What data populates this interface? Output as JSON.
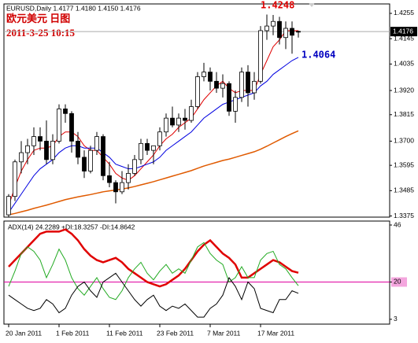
{
  "chart_data": [
    {
      "type": "candlestick",
      "title": "EURUSD,Daily 1.4177 1.4180 1.4150 1.4176",
      "subtitle": "欧元美元 日图",
      "timestamp": "2011-3-25 10:15",
      "categories": [
        "20 Jan 2011",
        null,
        null,
        null,
        null,
        null,
        null,
        null,
        "1 Feb 2011",
        null,
        null,
        null,
        null,
        null,
        null,
        null,
        "11 Feb 2011",
        null,
        null,
        null,
        null,
        null,
        null,
        null,
        "23 Feb 2011",
        null,
        null,
        null,
        null,
        null,
        null,
        null,
        "7 Mar 2011",
        null,
        null,
        null,
        null,
        null,
        null,
        null,
        "17 Mar 2011",
        null,
        null,
        null,
        null,
        null,
        null
      ],
      "open": [
        1.338,
        1.346,
        1.361,
        1.365,
        1.368,
        1.372,
        1.37,
        1.362,
        1.37,
        1.384,
        1.382,
        1.37,
        1.363,
        1.357,
        1.366,
        1.372,
        1.355,
        1.352,
        1.348,
        1.352,
        1.356,
        1.362,
        1.369,
        1.366,
        1.368,
        1.374,
        1.38,
        1.377,
        1.38,
        1.379,
        1.385,
        1.398,
        1.4,
        1.396,
        1.393,
        1.395,
        1.383,
        1.389,
        1.4,
        1.391,
        1.396,
        1.418,
        1.42,
        1.422,
        1.415,
        1.419,
        1.4177
      ],
      "high": [
        1.347,
        1.362,
        1.37,
        1.371,
        1.376,
        1.376,
        1.379,
        1.373,
        1.386,
        1.386,
        1.383,
        1.374,
        1.366,
        1.368,
        1.374,
        1.373,
        1.361,
        1.353,
        1.357,
        1.36,
        1.364,
        1.371,
        1.371,
        1.368,
        1.376,
        1.382,
        1.385,
        1.382,
        1.384,
        1.388,
        1.4,
        1.404,
        1.402,
        1.4,
        1.399,
        1.396,
        1.392,
        1.402,
        1.403,
        1.4,
        1.42,
        1.425,
        1.4248,
        1.424,
        1.422,
        1.422,
        1.418
      ],
      "low": [
        1.337,
        1.344,
        1.356,
        1.36,
        1.364,
        1.366,
        1.36,
        1.36,
        1.369,
        1.378,
        1.365,
        1.36,
        1.354,
        1.356,
        1.364,
        1.353,
        1.35,
        1.343,
        1.347,
        1.349,
        1.355,
        1.36,
        1.364,
        1.36,
        1.366,
        1.372,
        1.376,
        1.374,
        1.375,
        1.378,
        1.384,
        1.396,
        1.392,
        1.391,
        1.389,
        1.381,
        1.378,
        1.387,
        1.385,
        1.388,
        1.395,
        1.414,
        1.416,
        1.412,
        1.41,
        1.408,
        1.415
      ],
      "close": [
        1.346,
        1.361,
        1.365,
        1.368,
        1.372,
        1.37,
        1.362,
        1.37,
        1.384,
        1.382,
        1.37,
        1.363,
        1.357,
        1.366,
        1.372,
        1.355,
        1.352,
        1.348,
        1.352,
        1.356,
        1.362,
        1.369,
        1.366,
        1.368,
        1.374,
        1.38,
        1.377,
        1.38,
        1.379,
        1.385,
        1.398,
        1.4,
        1.396,
        1.393,
        1.395,
        1.383,
        1.389,
        1.4,
        1.391,
        1.396,
        1.418,
        1.42,
        1.422,
        1.415,
        1.419,
        1.416,
        1.4176
      ],
      "up_color": "#ffffff",
      "down_color": "#000000",
      "series": [
        {
          "color": "#e00000",
          "values": [
            1.342,
            1.35,
            1.357,
            1.362,
            1.366,
            1.367,
            1.367,
            1.368,
            1.372,
            1.374,
            1.374,
            1.372,
            1.368,
            1.366,
            1.366,
            1.363,
            1.36,
            1.356,
            1.354,
            1.353,
            1.355,
            1.358,
            1.361,
            1.364,
            1.368,
            1.371,
            1.373,
            1.376,
            1.378,
            1.38,
            1.384,
            1.388,
            1.391,
            1.394,
            1.396,
            1.393,
            1.391,
            1.392,
            1.392,
            1.392,
            1.399,
            1.405,
            1.411,
            1.414,
            1.418,
            1.418,
            1.418
          ]
        },
        {
          "color": "#0000e0",
          "values": [
            1.339,
            1.343,
            1.347,
            1.351,
            1.355,
            1.358,
            1.36,
            1.362,
            1.365,
            1.367,
            1.368,
            1.368,
            1.367,
            1.367,
            1.367,
            1.365,
            1.363,
            1.36,
            1.359,
            1.358,
            1.358,
            1.359,
            1.36,
            1.361,
            1.363,
            1.366,
            1.368,
            1.37,
            1.372,
            1.374,
            1.377,
            1.38,
            1.382,
            1.384,
            1.386,
            1.387,
            1.388,
            1.389,
            1.39,
            1.391,
            1.394,
            1.396,
            1.399,
            1.401,
            1.403,
            1.405,
            1.4064
          ]
        },
        {
          "color": "#e05a00",
          "values": [
            1.338,
            1.3386,
            1.3393,
            1.34,
            1.3408,
            1.3415,
            1.3422,
            1.343,
            1.3438,
            1.3446,
            1.3452,
            1.3458,
            1.3463,
            1.3468,
            1.3474,
            1.348,
            1.3484,
            1.3488,
            1.3492,
            1.3497,
            1.3503,
            1.351,
            1.3517,
            1.3524,
            1.3532,
            1.354,
            1.3548,
            1.3556,
            1.3564,
            1.3572,
            1.3582,
            1.3592,
            1.36,
            1.3608,
            1.3616,
            1.3622,
            1.363,
            1.3638,
            1.3646,
            1.3654,
            1.3665,
            1.3678,
            1.3692,
            1.3706,
            1.372,
            1.3733,
            1.3745
          ]
        }
      ],
      "ylim": [
        1.337,
        1.4296
      ],
      "yticks": [
        1.4255,
        1.4145,
        1.4035,
        {
          "value": 1.392,
          "label": "1.3920"
        },
        1.3815,
        {
          "value": 1.37,
          "label": "1.3700"
        },
        1.3595,
        1.3485,
        1.3375
      ],
      "current_price": 1.4176,
      "annotations": [
        {
          "value": 1.4248,
          "color": "#e00000"
        },
        {
          "value": 1.4064,
          "color": "#0000c0"
        }
      ]
    },
    {
      "type": "line",
      "title": "ADX(14) 24.2289 +DI:18.3257 -DI:14.8642",
      "series": [
        {
          "color": "#e00000",
          "width": 2.5,
          "values": [
            27,
            30,
            33,
            36,
            39,
            42,
            43,
            43,
            43,
            44,
            42,
            39,
            35,
            32,
            30,
            29,
            30,
            31,
            29,
            26,
            24,
            22,
            20,
            19,
            18,
            19,
            21,
            23,
            26,
            30,
            34,
            37,
            39,
            36,
            33,
            31,
            28,
            22,
            22,
            24,
            26,
            28,
            30,
            29,
            27,
            25,
            24.2289
          ]
        },
        {
          "color": "#22aa22",
          "width": 1,
          "values": [
            18,
            25,
            33,
            36,
            34,
            30,
            22,
            28,
            35,
            30,
            22,
            17,
            14,
            18,
            22,
            17,
            13,
            12,
            16,
            22,
            26,
            29,
            24,
            21,
            25,
            28,
            24,
            26,
            24,
            30,
            36,
            38,
            33,
            30,
            28,
            20,
            22,
            27,
            22,
            22,
            30,
            33,
            34,
            28,
            26,
            22,
            18.3257
          ]
        },
        {
          "color": "#000000",
          "width": 1,
          "values": [
            14,
            12,
            10,
            8,
            7,
            8,
            12,
            10,
            6,
            8,
            14,
            18,
            20,
            16,
            13,
            20,
            22,
            24,
            20,
            16,
            12,
            9,
            12,
            14,
            9,
            7,
            9,
            8,
            10,
            7,
            4,
            4,
            8,
            10,
            14,
            22,
            18,
            12,
            20,
            17,
            8,
            7,
            6,
            12,
            12,
            16,
            14.8642
          ]
        }
      ],
      "ylim": [
        0.8,
        47.8
      ],
      "yticks": [
        46,
        20,
        3
      ],
      "level": 20,
      "level_color": "#e000a0"
    }
  ]
}
